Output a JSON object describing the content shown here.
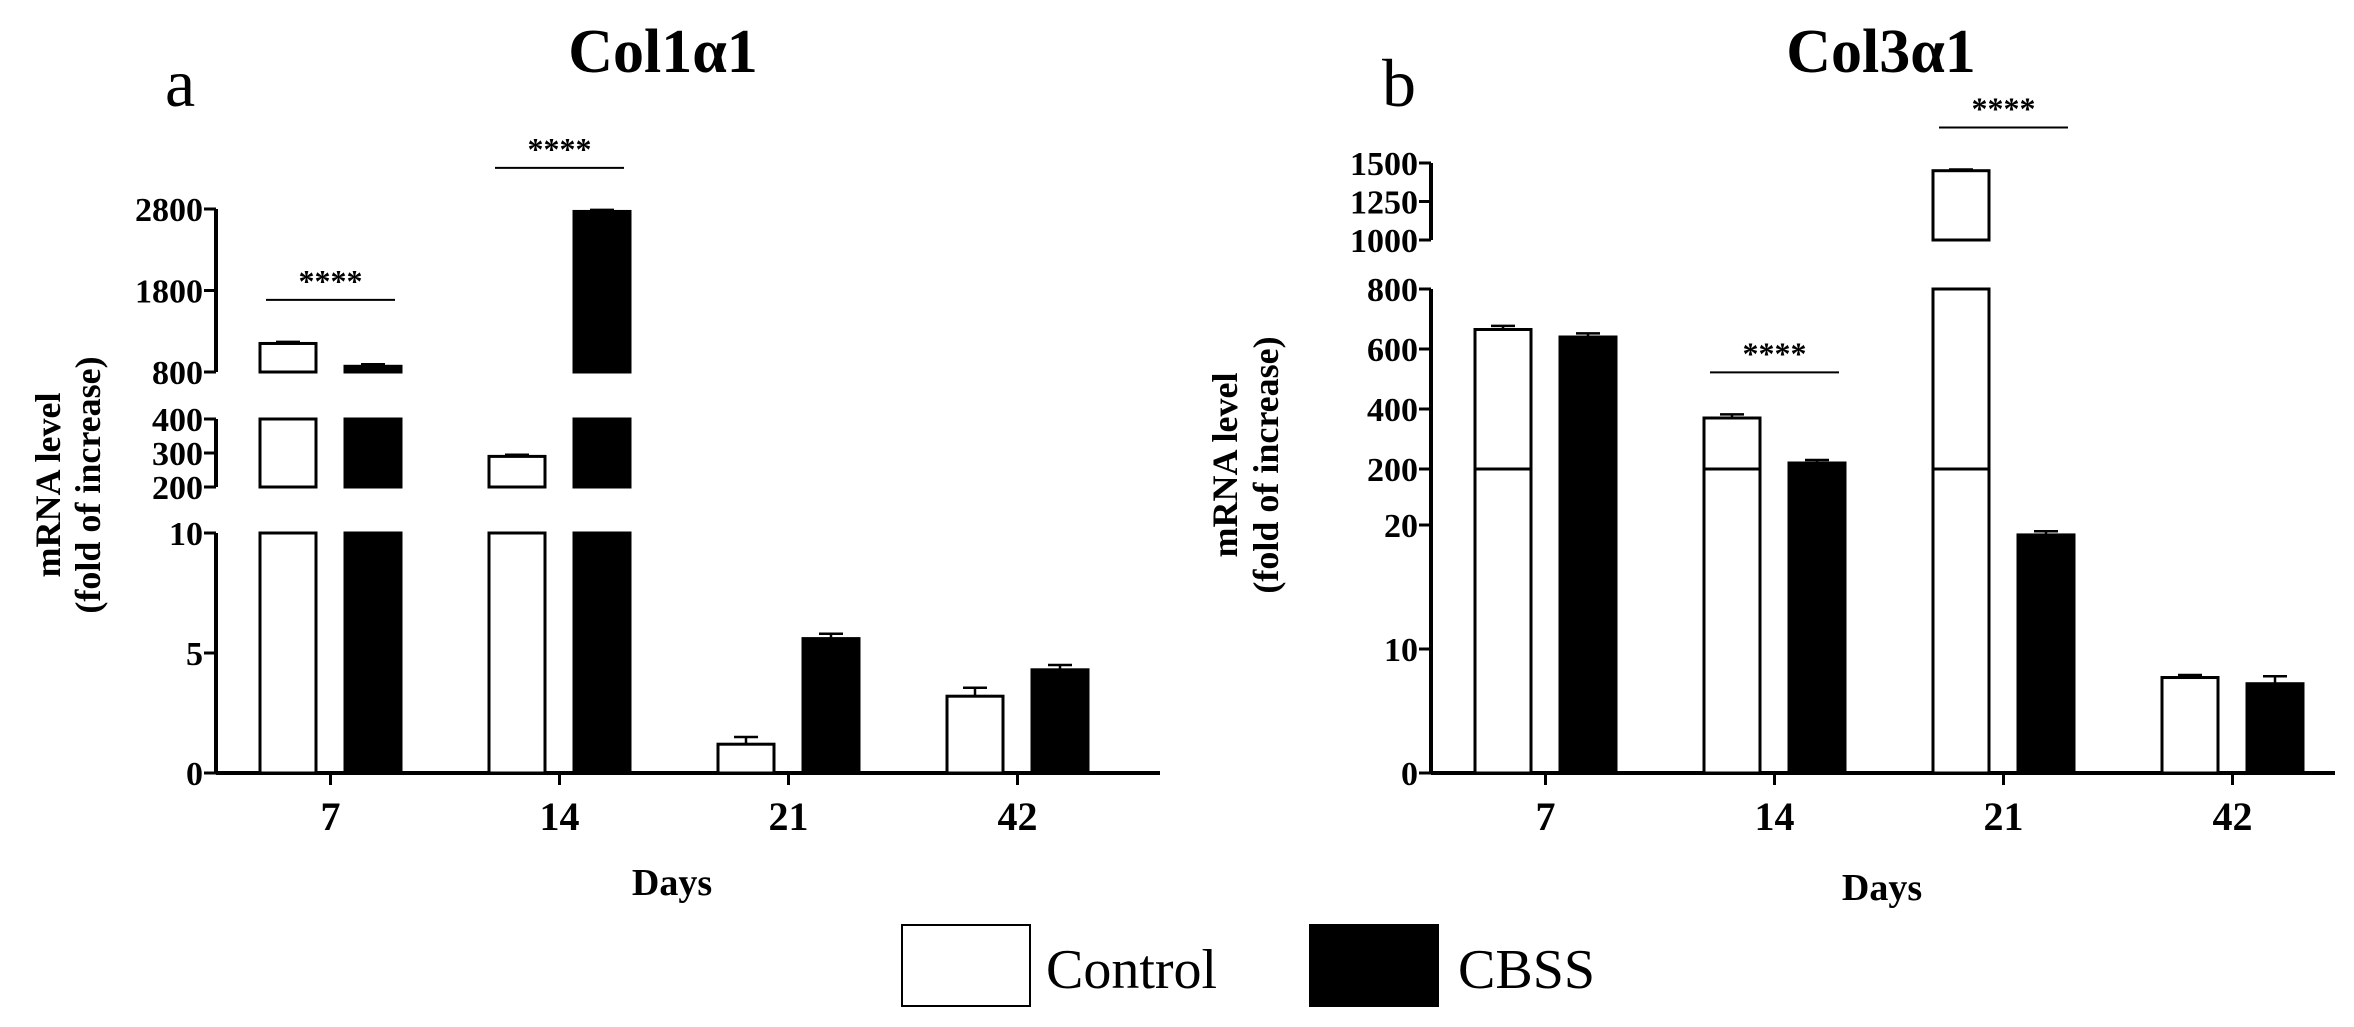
{
  "chart_data": [
    {
      "type": "bar",
      "panel_label": "a",
      "title": "Col1α1",
      "xlabel": "Days",
      "ylabel_line1": "mRNA level",
      "ylabel_line2": "(fold of increase)",
      "categories": [
        "7",
        "14",
        "21",
        "42"
      ],
      "y_segments": [
        {
          "range": [
            0,
            10
          ],
          "ticks": [
            "0",
            "5",
            "10"
          ]
        },
        {
          "range": [
            200,
            400
          ],
          "ticks": [
            "200",
            "300",
            "400"
          ]
        },
        {
          "range": [
            800,
            2800
          ],
          "ticks": [
            "800",
            "1800",
            "2800"
          ]
        }
      ],
      "series": [
        {
          "name": "Control",
          "values": [
            1150,
            290,
            1.2,
            3.2
          ],
          "errors": [
            20,
            5,
            0.3,
            0.35
          ]
        },
        {
          "name": "CBSS",
          "values": [
            870,
            2770,
            5.6,
            4.3
          ],
          "errors": [
            25,
            20,
            0.2,
            0.2
          ]
        }
      ],
      "significance": [
        {
          "category": "7",
          "label": "****"
        },
        {
          "category": "14",
          "label": "****"
        }
      ]
    },
    {
      "type": "bar",
      "panel_label": "b",
      "title": "Col3α1",
      "xlabel": "Days",
      "ylabel_line1": "mRNA level",
      "ylabel_line2": "(fold of increase)",
      "categories": [
        "7",
        "14",
        "21",
        "42"
      ],
      "y_segments": [
        {
          "range": [
            0,
            25
          ],
          "ticks": [
            "0",
            "10",
            "20"
          ]
        },
        {
          "range": [
            200,
            800
          ],
          "ticks": [
            "200",
            "400",
            "600",
            "800"
          ]
        },
        {
          "range": [
            1000,
            1500
          ],
          "ticks": [
            "1000",
            "1250",
            "1500"
          ]
        }
      ],
      "series": [
        {
          "name": "Control",
          "values": [
            665,
            370,
            1450,
            7.7
          ],
          "errors": [
            12,
            12,
            8,
            0.2
          ]
        },
        {
          "name": "CBSS",
          "values": [
            640,
            215,
            19.2,
            7.2
          ],
          "errors": [
            12,
            15,
            0.3,
            0.6
          ]
        }
      ],
      "significance": [
        {
          "category": "14",
          "label": "****"
        },
        {
          "category": "21",
          "label": "****"
        }
      ]
    }
  ],
  "legend": [
    {
      "name": "Control",
      "color": "#ffffff"
    },
    {
      "name": "CBSS",
      "color": "#000000"
    }
  ]
}
